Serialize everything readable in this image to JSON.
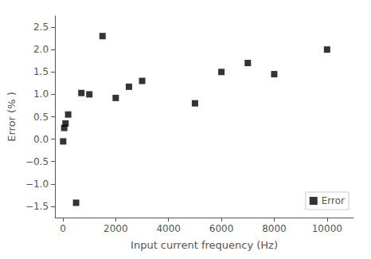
{
  "chart_data": {
    "type": "scatter",
    "x": [
      10,
      50,
      100,
      200,
      500,
      700,
      1000,
      1500,
      2000,
      2500,
      3000,
      5000,
      6000,
      7000,
      8000,
      10000
    ],
    "series": [
      {
        "name": "Error",
        "color": "black",
        "marker": "square",
        "values": [
          -0.05,
          0.25,
          0.35,
          0.55,
          -1.42,
          1.03,
          1.0,
          2.3,
          0.92,
          1.17,
          1.3,
          0.8,
          1.5,
          1.7,
          1.45,
          2.0
        ]
      }
    ],
    "xlabel": "Input current frequency (Hz)",
    "ylabel": "Error (% )",
    "xlim": [
      -300,
      11000
    ],
    "ylim": [
      -1.75,
      2.75
    ],
    "xticks": [
      0,
      2000,
      4000,
      6000,
      8000,
      10000
    ],
    "yticks": [
      {
        "value": -1.5,
        "label": "−1.5"
      },
      {
        "value": -1.0,
        "label": "−1.0"
      },
      {
        "value": -0.5,
        "label": "−0.5"
      },
      {
        "value": 0.0,
        "label": "0.0"
      },
      0.5,
      {
        "value": 1.0,
        "label": "1.0"
      },
      1.5,
      {
        "value": 2.0,
        "label": "2.0"
      },
      2.5
    ],
    "grid": false,
    "legend": "lower right"
  }
}
